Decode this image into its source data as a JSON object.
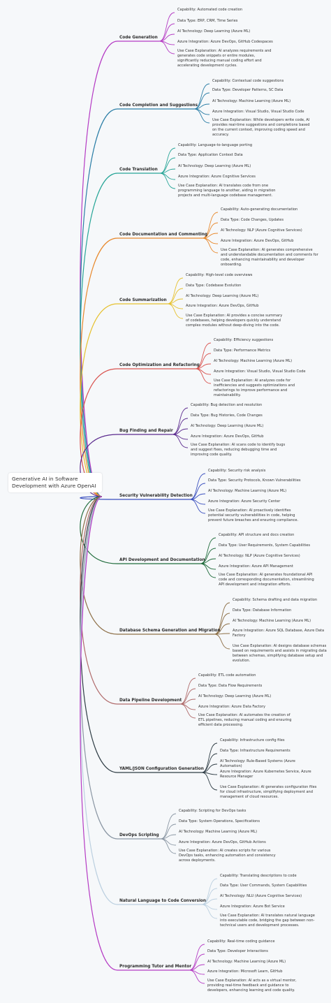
{
  "root": "Generative AI in Software Development with Azure OpenAI",
  "branches": [
    {
      "label": "Code Generation",
      "color": "#b53bc4",
      "items": [
        "Capability: Automated code creation",
        "Data Type: ERP, CRM, Time Series",
        "AI Technology: Deep Learning (Azure ML)",
        "Azure Integration: Azure DevOps, GitHub Codespaces",
        "Use Case Explanation: AI analyzes requirements and generates code snippets or entire modules, significantly reducing manual coding effort and accelerating development cycles."
      ]
    },
    {
      "label": "Code Completion and Suggestions",
      "color": "#2b7ea6",
      "items": [
        "Capability: Contextual code suggestions",
        "Data Type: Developer Patterns, SC Data",
        "AI Technology: Machine Learning (Azure ML)",
        "Azure Integration: Visual Studio, Visual Studio Code",
        "Use Case Explanation: While developers write code, AI provides real-time suggestions and completions based on the current context, improving coding speed and accuracy."
      ]
    },
    {
      "label": "Code Translation",
      "color": "#27a597",
      "items": [
        "Capability: Language-to-language porting",
        "Data Type: Application Context Data",
        "AI Technology: Deep Learning (Azure ML)",
        "Azure Integration: Azure Cognitive Services",
        "Use Case Explanation: AI translates code from one programming language to another, aiding in migration projects and multi-language codebase management."
      ]
    },
    {
      "label": "Code Documentation and Commenting",
      "color": "#e8892d",
      "items": [
        "Capability: Auto-generating documentation",
        "Data Type: Code Changes, Updates",
        "AI Technology: NLP (Azure Cognitive Services)",
        "Azure Integration: Azure DevOps, GitHub",
        "Use Case Explanation: AI generates comprehensive and understandable documentation and comments for code, enhancing maintainability and developer onboarding."
      ]
    },
    {
      "label": "Code Summarization",
      "color": "#e6c12e",
      "items": [
        "Capability: High-level code overviews",
        "Data Type: Codebase Evolution",
        "AI Technology: Deep Learning (Azure ML)",
        "Azure Integration: Azure DevOps, GitHub",
        "Use Case Explanation: AI provides a concise summary of codebases, helping developers quickly understand complex modules without deep-diving into the code."
      ]
    },
    {
      "label": "Code Optimization and Refactoring",
      "color": "#d9534f",
      "items": [
        "Capability: Efficiency suggestions",
        "Data Type: Performance Metrics",
        "AI Technology: Machine Learning (Azure ML)",
        "Azure Integration: Visual Studio, Visual Studio Code",
        "Use Case Explanation: AI analyzes code for inefficiencies and suggests optimizations and refactorings to improve performance and maintainability."
      ]
    },
    {
      "label": "Bug Finding and Repair",
      "color": "#5b2a8e",
      "items": [
        "Capability: Bug detection and resolution",
        "Data Type: Bug Histories, Code Changes",
        "AI Technology: Deep Learning (Azure ML)",
        "Azure Integration: Azure DevOps, GitHub",
        "Use Case Explanation: AI scans code to identify bugs and suggest fixes, reducing debugging time and improving code quality."
      ]
    },
    {
      "label": "Security Vulnerability Detection",
      "color": "#3a4fbf",
      "items": [
        "Capability: Security risk analysis",
        "Data Type: Security Protocols, Known Vulnerabilities",
        "AI Technology: Machine Learning (Azure ML)",
        "Azure Integration: Azure Security Center",
        "Use Case Explanation: AI proactively identifies potential security vulnerabilities in code, helping prevent future breaches and ensuring compliance."
      ]
    },
    {
      "label": "API Development and Documentation",
      "color": "#1f6b3b",
      "items": [
        "Capability: API structure and docs creation",
        "Data Type: User Requirements, System Capabilities",
        "AI Technology: NLP (Azure Cognitive Services)",
        "Azure Integration: Azure API Management",
        "Use Case Explanation: AI generates foundational API code and corresponding documentation, streamlining API development and integration efforts."
      ]
    },
    {
      "label": "Database Schema Generation and Migration",
      "color": "#8c6e45",
      "items": [
        "Capability: Schema drafting and data migration",
        "Data Type: Database Information",
        "AI Technology: Machine Learning (Azure ML)",
        "Azure Integration: Azure SQL Database, Azure Data Factory",
        "Use Case Explanation: AI designs database schemas based on requirements and assists in migrating data between schemas, simplifying database setup and evolution."
      ]
    },
    {
      "label": "Data Pipeline Development",
      "color": "#b06b6b",
      "items": [
        "Capability: ETL code automation",
        "Data Type: Data Flow Requirements",
        "AI Technology: Deep Learning (Azure ML)",
        "Azure Integration: Azure Data Factory",
        "Use Case Explanation: AI automates the creation of ETL pipelines, reducing manual coding and ensuring efficient data processing."
      ]
    },
    {
      "label": "YAML/JSON Configuration Generation",
      "color": "#2f3d45",
      "items": [
        "Capability: Infrastructure config files",
        "Data Type: Infrastructure Requirements",
        "AI Technology: Rule-Based Systems (Azure Automation)",
        "Azure Integration: Azure Kubernetes Service, Azure Resource Manager",
        "Use Case Explanation: AI generates configuration files for cloud infrastructure, simplifying deployment and management of cloud resources."
      ]
    },
    {
      "label": "DevOps Scripting",
      "color": "#8a96a3",
      "items": [
        "Capability: Scripting for DevOps tasks",
        "Data Type: System Operations, Specifications",
        "AI Technology: Machine Learning (Azure ML)",
        "Azure Integration: Azure DevOps, GitHub Actions",
        "Use Case Explanation: AI creates scripts for various DevOps tasks, enhancing automation and consistency across deployments."
      ]
    },
    {
      "label": "Natural Language to Code Conversion",
      "color": "#bcd0e0",
      "items": [
        "Capability: Translating descriptions to code",
        "Data Type: User Commands, System Capabilities",
        "AI Technology: NLU (Azure Cognitive Services)",
        "Azure Integration: Azure Bot Service",
        "Use Case Explanation: AI translates natural language into executable code, bridging the gap between non-technical users and development processes."
      ]
    },
    {
      "label": "Programming Tutor and Mentor",
      "color": "#b53bc4",
      "items": [
        "Capability: Real-time coding guidance",
        "Data Type: Developer Interactions",
        "AI Technology: Machine Learning (Azure ML)",
        "Azure Integration: Microsoft Learn, GitHub",
        "Use Case Explanation: AI acts as a virtual mentor, providing real-time feedback and guidance to developers, enhancing learning and code quality."
      ]
    }
  ]
}
